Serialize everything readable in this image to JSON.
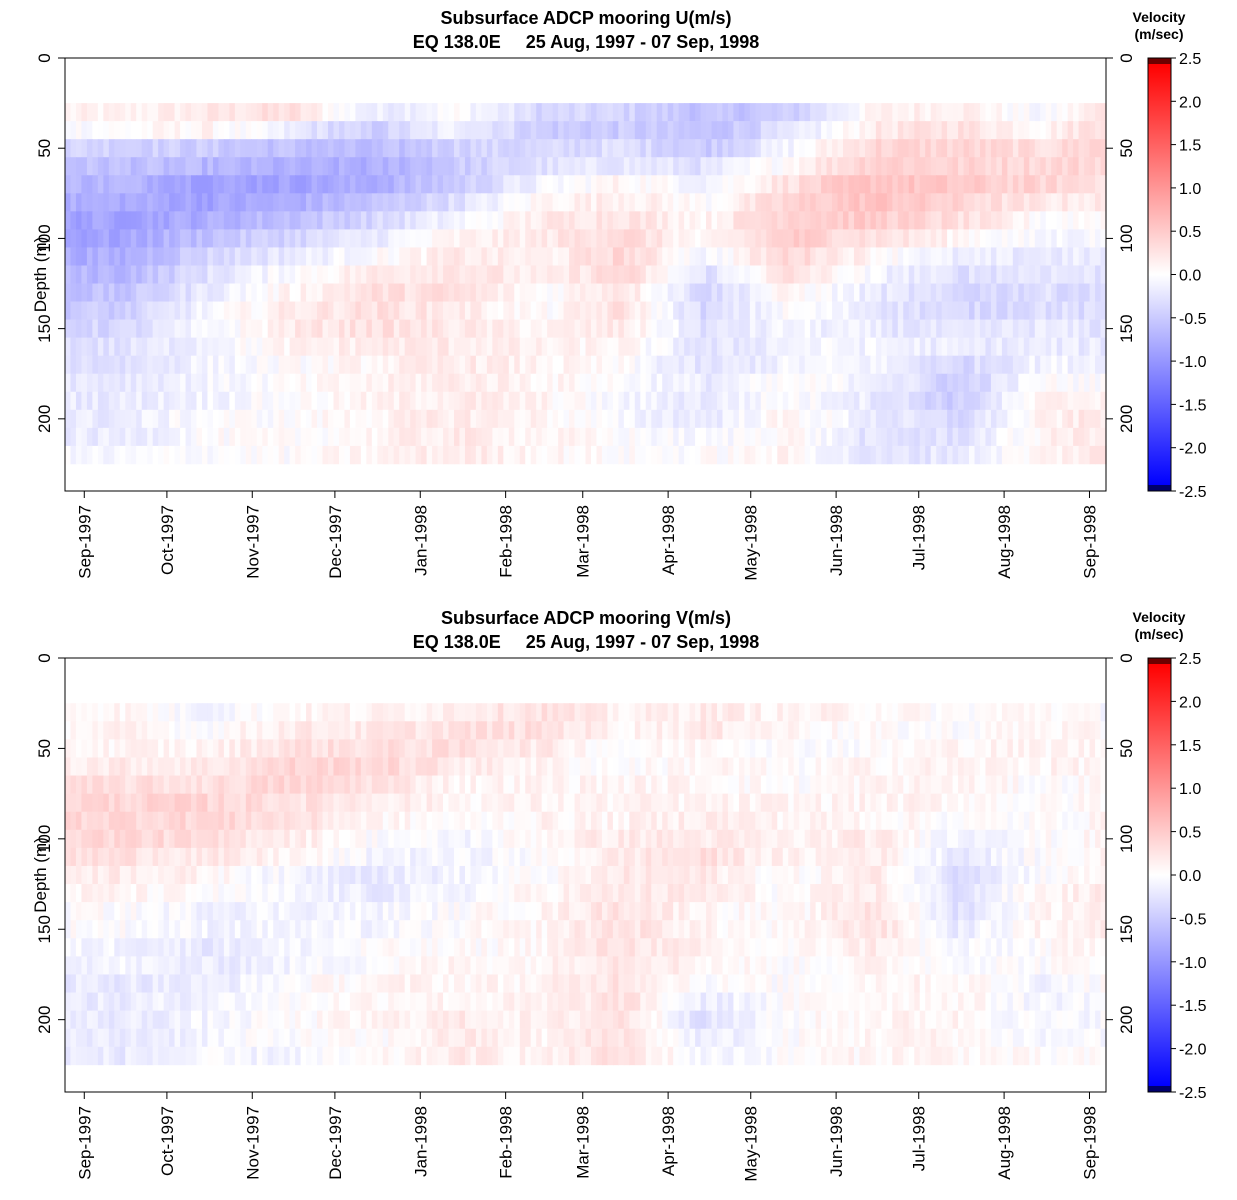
{
  "colorbar": {
    "title_line1": "Velocity",
    "title_line2": "(m/sec)",
    "ticks": [
      "2.5",
      "2.0",
      "1.5",
      "1.0",
      "0.5",
      "0.0",
      "-0.5",
      "-1.0",
      "-1.5",
      "-2.0",
      "-2.5"
    ],
    "min": -2.5,
    "max": 2.5,
    "colors": {
      "negative_max": "#0000ff",
      "zero": "#ffffff",
      "positive_max": "#ff0000",
      "under": "#00006e",
      "over": "#6e0000"
    }
  },
  "chart_data": [
    {
      "type": "heatmap",
      "title_line1": "Subsurface ADCP mooring U(m/s)",
      "title_line2": "EQ 138.0E     25 Aug, 1997 - 07 Sep, 1998",
      "ylabel": "Depth (m)",
      "ylim": [
        0,
        240
      ],
      "y_ticks": [
        "0",
        "50",
        "100",
        "150",
        "200"
      ],
      "x_ticks": [
        "Sep-1997",
        "Oct-1997",
        "Nov-1997",
        "Dec-1997",
        "Jan-1998",
        "Feb-1998",
        "Mar-1998",
        "Apr-1998",
        "May-1998",
        "Jun-1998",
        "Jul-1998",
        "Aug-1998",
        "Sep-1998"
      ],
      "x_range": [
        "1997-08-25",
        "1998-09-07"
      ],
      "depths": [
        30,
        40,
        50,
        60,
        70,
        80,
        90,
        100,
        110,
        120,
        130,
        140,
        150,
        160,
        170,
        180,
        190,
        200,
        210,
        220
      ],
      "months": [
        "1997-09",
        "1997-10",
        "1997-11",
        "1997-12",
        "1998-01",
        "1998-02",
        "1998-03",
        "1998-04",
        "1998-05",
        "1998-06",
        "1998-07",
        "1998-08",
        "1998-09"
      ],
      "values": [
        [
          0.1,
          0.2,
          0.3,
          -0.2,
          0.0,
          -0.4,
          -0.4,
          -0.6,
          -0.5,
          0.1,
          0.2,
          -0.1,
          0.4
        ],
        [
          0.0,
          0.1,
          -0.2,
          -0.5,
          -0.1,
          -0.5,
          -0.5,
          -0.6,
          -0.3,
          0.2,
          0.3,
          0.1,
          0.5
        ],
        [
          -0.4,
          -0.5,
          -0.6,
          -0.7,
          -0.4,
          -0.4,
          -0.3,
          -0.5,
          -0.1,
          0.4,
          0.4,
          0.3,
          0.5
        ],
        [
          -0.6,
          -0.7,
          -0.8,
          -0.8,
          -0.5,
          -0.3,
          -0.2,
          -0.3,
          0.1,
          0.5,
          0.4,
          0.4,
          0.4
        ],
        [
          -0.7,
          -0.9,
          -0.9,
          -0.8,
          -0.5,
          -0.1,
          0.1,
          -0.1,
          0.3,
          0.6,
          0.5,
          0.4,
          0.3
        ],
        [
          -0.8,
          -0.9,
          -0.8,
          -0.6,
          -0.3,
          0.1,
          0.2,
          0.0,
          0.4,
          0.6,
          0.4,
          0.2,
          0.2
        ],
        [
          -0.9,
          -0.8,
          -0.6,
          -0.4,
          -0.1,
          0.2,
          0.3,
          0.1,
          0.5,
          0.5,
          0.3,
          0.0,
          0.1
        ],
        [
          -0.9,
          -0.6,
          -0.4,
          -0.2,
          0.1,
          0.2,
          0.4,
          0.0,
          0.5,
          0.3,
          0.1,
          -0.1,
          0.0
        ],
        [
          -0.8,
          -0.4,
          -0.2,
          0.0,
          0.2,
          0.1,
          0.4,
          -0.1,
          0.4,
          0.1,
          -0.2,
          -0.2,
          -0.2
        ],
        [
          -0.7,
          -0.3,
          0.0,
          0.2,
          0.3,
          0.1,
          0.4,
          -0.3,
          0.3,
          -0.1,
          -0.3,
          -0.2,
          -0.3
        ],
        [
          -0.6,
          -0.2,
          0.1,
          0.3,
          0.3,
          0.0,
          0.3,
          -0.4,
          0.1,
          -0.2,
          -0.4,
          -0.3,
          -0.4
        ],
        [
          -0.5,
          -0.1,
          0.2,
          0.3,
          0.2,
          0.0,
          0.3,
          -0.4,
          0.0,
          -0.2,
          -0.4,
          -0.3,
          -0.4
        ],
        [
          -0.4,
          -0.1,
          0.2,
          0.3,
          0.2,
          0.1,
          0.2,
          -0.3,
          -0.1,
          -0.2,
          -0.3,
          -0.2,
          -0.3
        ],
        [
          -0.3,
          -0.1,
          0.1,
          0.2,
          0.2,
          0.1,
          0.1,
          -0.3,
          -0.1,
          -0.1,
          -0.2,
          -0.2,
          -0.2
        ],
        [
          -0.3,
          -0.1,
          0.0,
          0.1,
          0.2,
          0.1,
          0.0,
          -0.3,
          -0.1,
          -0.1,
          -0.4,
          -0.1,
          -0.1
        ],
        [
          -0.2,
          -0.1,
          0.0,
          0.1,
          0.2,
          0.1,
          0.0,
          -0.2,
          0.0,
          -0.1,
          -0.5,
          0.0,
          0.0
        ],
        [
          -0.2,
          -0.1,
          0.0,
          0.1,
          0.2,
          0.1,
          -0.1,
          -0.2,
          0.0,
          -0.2,
          -0.5,
          0.1,
          0.2
        ],
        [
          -0.2,
          0.0,
          0.0,
          0.1,
          0.2,
          0.1,
          -0.1,
          -0.2,
          0.1,
          -0.2,
          -0.4,
          0.1,
          0.3
        ],
        [
          -0.2,
          0.0,
          0.0,
          0.1,
          0.2,
          0.1,
          0.0,
          -0.1,
          0.1,
          -0.3,
          -0.3,
          0.1,
          0.3
        ],
        [
          -0.1,
          0.0,
          0.0,
          0.1,
          0.2,
          0.1,
          0.0,
          0.0,
          0.1,
          -0.3,
          -0.2,
          0.1,
          0.3
        ]
      ]
    },
    {
      "type": "heatmap",
      "title_line1": "Subsurface ADCP mooring V(m/s)",
      "title_line2": "EQ 138.0E     25 Aug, 1997 - 07 Sep, 1998",
      "ylabel": "Depth (m)",
      "ylim": [
        0,
        240
      ],
      "y_ticks": [
        "0",
        "50",
        "100",
        "150",
        "200"
      ],
      "x_ticks": [
        "Sep-1997",
        "Oct-1997",
        "Nov-1997",
        "Dec-1997",
        "Jan-1998",
        "Feb-1998",
        "Mar-1998",
        "Apr-1998",
        "May-1998",
        "Jun-1998",
        "Jul-1998",
        "Aug-1998",
        "Sep-1998"
      ],
      "x_range": [
        "1997-08-25",
        "1998-09-07"
      ],
      "depths": [
        30,
        40,
        50,
        60,
        70,
        80,
        90,
        100,
        110,
        120,
        130,
        140,
        150,
        160,
        170,
        180,
        190,
        200,
        210,
        220
      ],
      "months": [
        "1997-09",
        "1997-10",
        "1997-11",
        "1997-12",
        "1998-01",
        "1998-02",
        "1998-03",
        "1998-04",
        "1998-05",
        "1998-06",
        "1998-07",
        "1998-08",
        "1998-09"
      ],
      "values": [
        [
          0.1,
          -0.1,
          0.1,
          0.1,
          0.2,
          0.3,
          0.1,
          0.2,
          0.1,
          0.1,
          0.0,
          0.1,
          -0.1
        ],
        [
          0.1,
          0.0,
          0.2,
          0.2,
          0.3,
          0.3,
          0.1,
          0.2,
          0.1,
          0.0,
          0.0,
          0.1,
          0.0
        ],
        [
          0.1,
          0.1,
          0.3,
          0.3,
          0.3,
          0.2,
          0.0,
          0.1,
          0.0,
          0.0,
          0.1,
          0.1,
          0.1
        ],
        [
          0.2,
          0.2,
          0.4,
          0.4,
          0.2,
          0.1,
          0.0,
          0.1,
          0.0,
          0.1,
          0.1,
          0.1,
          0.1
        ],
        [
          0.3,
          0.3,
          0.4,
          0.3,
          0.1,
          0.1,
          0.1,
          0.1,
          0.0,
          0.1,
          0.1,
          0.0,
          0.1
        ],
        [
          0.4,
          0.4,
          0.3,
          0.2,
          0.1,
          0.1,
          0.1,
          0.1,
          0.1,
          0.1,
          0.1,
          0.0,
          0.1
        ],
        [
          0.4,
          0.4,
          0.3,
          0.1,
          0.0,
          0.1,
          0.1,
          0.2,
          0.1,
          0.1,
          0.0,
          0.0,
          0.1
        ],
        [
          0.4,
          0.3,
          0.2,
          0.0,
          -0.1,
          0.1,
          0.2,
          0.2,
          0.1,
          0.2,
          -0.1,
          0.0,
          0.1
        ],
        [
          0.3,
          0.2,
          0.1,
          -0.1,
          -0.1,
          0.0,
          0.2,
          0.3,
          0.1,
          0.2,
          -0.2,
          0.0,
          0.1
        ],
        [
          0.2,
          0.1,
          -0.1,
          -0.2,
          -0.1,
          0.0,
          0.2,
          0.2,
          0.0,
          0.2,
          -0.3,
          0.0,
          0.1
        ],
        [
          0.1,
          0.0,
          -0.1,
          -0.2,
          -0.1,
          0.1,
          0.2,
          0.2,
          0.0,
          0.2,
          -0.3,
          0.1,
          0.2
        ],
        [
          0.0,
          -0.1,
          -0.1,
          -0.1,
          0.0,
          0.1,
          0.3,
          0.1,
          0.0,
          0.3,
          -0.3,
          0.1,
          0.2
        ],
        [
          0.0,
          -0.1,
          -0.1,
          -0.1,
          0.0,
          0.1,
          0.3,
          0.1,
          0.0,
          0.3,
          -0.2,
          0.1,
          0.2
        ],
        [
          -0.1,
          -0.2,
          -0.1,
          0.0,
          0.0,
          0.1,
          0.3,
          0.1,
          0.0,
          0.2,
          -0.1,
          0.0,
          0.2
        ],
        [
          -0.1,
          -0.2,
          -0.1,
          0.0,
          0.1,
          0.1,
          0.3,
          0.1,
          0.0,
          0.1,
          0.0,
          0.0,
          0.1
        ],
        [
          -0.2,
          -0.2,
          0.0,
          0.1,
          0.1,
          0.1,
          0.3,
          0.0,
          0.0,
          0.1,
          0.1,
          -0.1,
          0.1
        ],
        [
          -0.2,
          -0.1,
          0.0,
          0.1,
          0.1,
          0.1,
          0.3,
          -0.2,
          0.0,
          0.1,
          0.1,
          -0.1,
          0.0
        ],
        [
          -0.2,
          -0.1,
          0.0,
          0.1,
          0.2,
          0.1,
          0.3,
          -0.3,
          0.0,
          0.1,
          0.1,
          -0.1,
          0.0
        ],
        [
          -0.2,
          -0.1,
          0.0,
          0.0,
          0.2,
          0.1,
          0.3,
          -0.2,
          0.0,
          0.1,
          0.1,
          -0.1,
          0.0
        ],
        [
          -0.2,
          -0.1,
          -0.1,
          0.0,
          0.2,
          0.1,
          0.3,
          -0.1,
          0.0,
          0.1,
          0.1,
          0.0,
          0.0
        ]
      ]
    }
  ]
}
